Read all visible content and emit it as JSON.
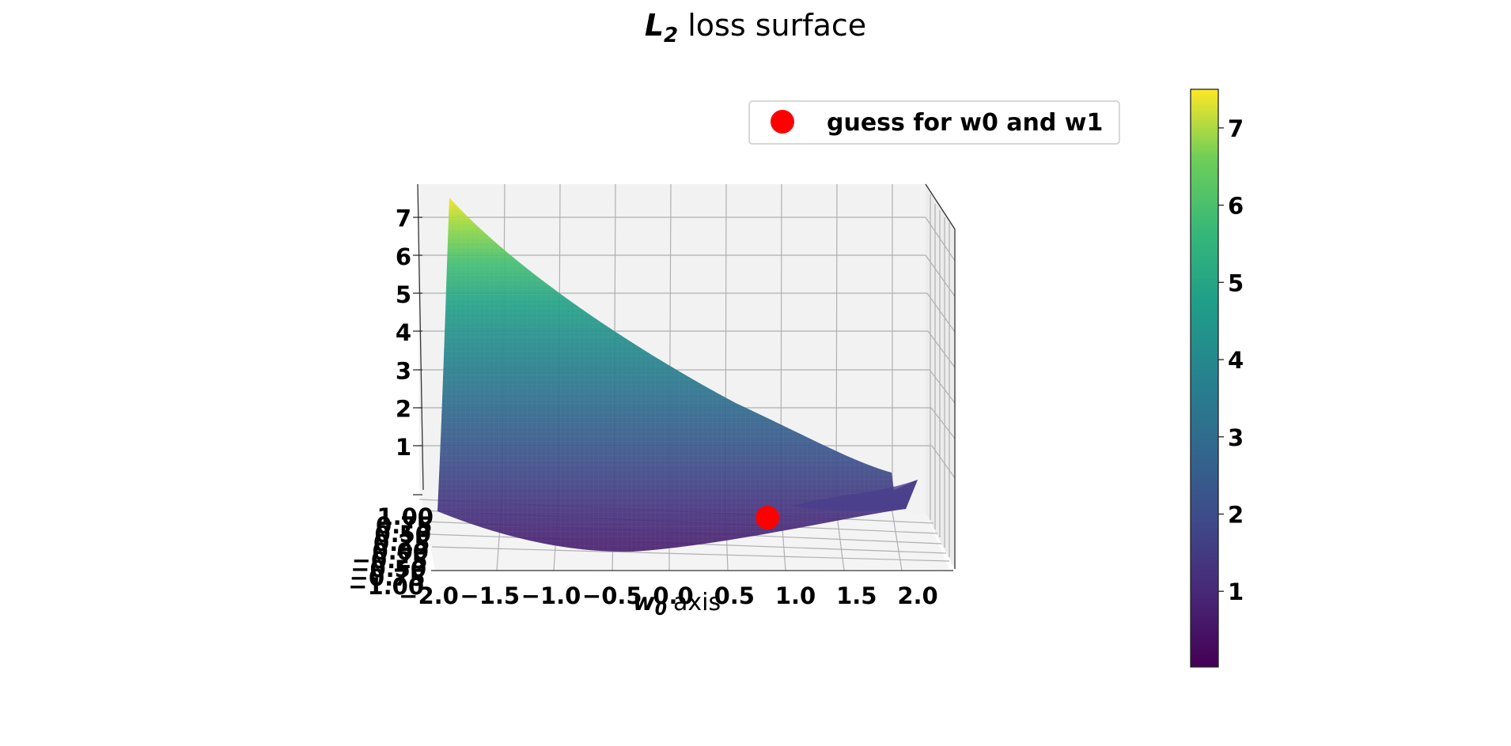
{
  "chart_data": {
    "type": "surface3d",
    "title": {
      "symbol": "L",
      "subscript": "2",
      "rest": "loss surface"
    },
    "xlabel": {
      "symbol": "w",
      "subscript": "0",
      "rest": "axis"
    },
    "x_ticks": [
      "−2.0",
      "−1.5",
      "−1.0",
      "−0.5",
      "0.0",
      "0.5",
      "1.0",
      "1.5",
      "2.0"
    ],
    "y_ticks": [
      "−1.00",
      "−0.75",
      "−0.50",
      "−0.25",
      "0.00",
      "0.25",
      "0.50",
      "0.75",
      "1.00"
    ],
    "z_ticks": [
      "1",
      "2",
      "3",
      "4",
      "5",
      "6",
      "7"
    ],
    "xlim": [
      -2.0,
      2.0
    ],
    "ylim": [
      -1.0,
      1.0
    ],
    "zlim": [
      0,
      7.5
    ],
    "colormap": "viridis",
    "colorbar": {
      "range": [
        0.02,
        7.5
      ],
      "ticks": [
        "1",
        "2",
        "3",
        "4",
        "5",
        "6",
        "7"
      ]
    },
    "marker": {
      "label": "guess for w0 and w1",
      "color": "#ff0000",
      "x": 0.75,
      "y": 0.0,
      "z": 0.3
    },
    "legend_position": "top-right",
    "grid": true
  }
}
